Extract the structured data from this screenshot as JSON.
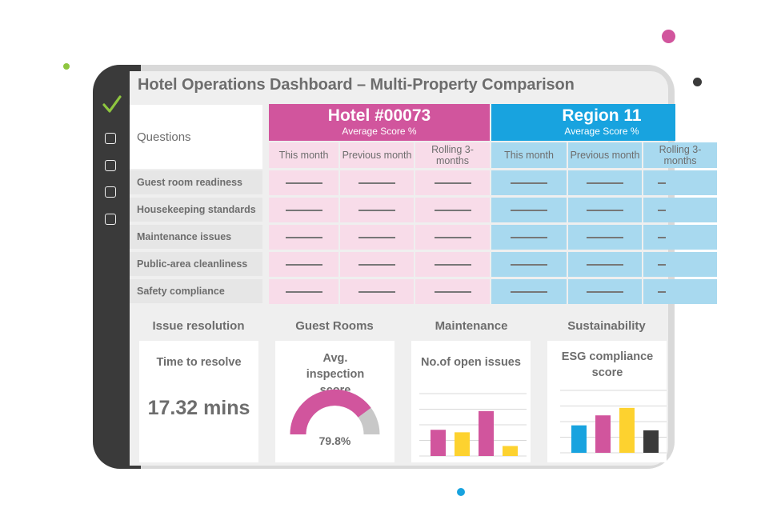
{
  "title": "Hotel Operations Dashboard – Multi-Property Comparison",
  "questions_header": "Questions",
  "questions": [
    "Guest room readiness",
    "Housekeeping standards",
    "Maintenance issues",
    "Public-area cleanliness",
    "Safety compliance"
  ],
  "groups": [
    {
      "name": "Hotel #00073",
      "subtitle": "Average Score %",
      "color": "#d1559d",
      "cell_color": "#f8dce9",
      "periods": [
        "This month",
        "Previous month",
        "Rolling 3-months"
      ]
    },
    {
      "name": "Region 11",
      "subtitle": "Average Score %",
      "color": "#18a3df",
      "cell_color": "#a8d9ef",
      "periods": [
        "This month",
        "Previous month",
        "Rolling 3-months"
      ]
    }
  ],
  "cards": [
    {
      "title": "Issue resolution",
      "label": "Time to resolve",
      "value": "17.32 mins"
    },
    {
      "title": "Guest Rooms",
      "label": "Avg. inspection score",
      "value": "79.8%",
      "gauge_fraction": 0.798
    },
    {
      "title": "Maintenance",
      "label": "No.of open issues"
    },
    {
      "title": "Sustainability",
      "label": "ESG compliance score"
    }
  ],
  "colors": {
    "pink": "#d1559d",
    "yellow": "#fdd22f",
    "blue": "#18a3df",
    "dark": "#3a3a3a",
    "green": "#8ec63f"
  },
  "maintenance_chart": {
    "type": "bar",
    "values": [
      42,
      38,
      72,
      16
    ],
    "colors": [
      "#d1559d",
      "#fdd22f",
      "#d1559d",
      "#fdd22f"
    ],
    "ylim": [
      0,
      100
    ]
  },
  "esg_chart": {
    "type": "bar",
    "values": [
      44,
      60,
      72,
      36
    ],
    "colors": [
      "#18a3df",
      "#d1559d",
      "#fdd22f",
      "#3a3a3a"
    ],
    "ylim": [
      0,
      100
    ]
  }
}
